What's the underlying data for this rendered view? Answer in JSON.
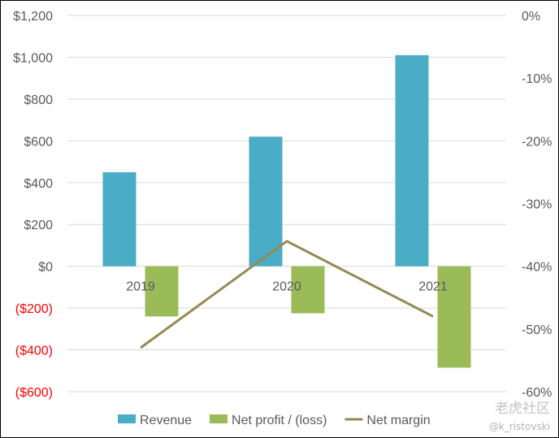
{
  "chart_data": {
    "type": "bar",
    "categories": [
      "2019",
      "2020",
      "2021"
    ],
    "series": [
      {
        "name": "Revenue",
        "kind": "bar",
        "axis": "left",
        "color": "#4bacc6",
        "values": [
          450,
          620,
          1010
        ]
      },
      {
        "name": "Net profit / (loss)",
        "kind": "bar",
        "axis": "left",
        "color": "#9bbb59",
        "values": [
          -240,
          -225,
          -485
        ]
      },
      {
        "name": "Net margin",
        "kind": "line",
        "axis": "right",
        "color": "#948a54",
        "values": [
          -53,
          -36,
          -48
        ]
      }
    ],
    "y_left": {
      "min": -600,
      "max": 1200,
      "step": 200,
      "tick_labels": [
        "($600)",
        "($400)",
        "($200)",
        "$0",
        "$200",
        "$400",
        "$600",
        "$800",
        "$1,000",
        "$1,200"
      ],
      "negative_color": "#ff0000"
    },
    "y_right": {
      "min": -60,
      "max": 0,
      "step": 10,
      "tick_labels": [
        "-60%",
        "-50%",
        "-40%",
        "-30%",
        "-20%",
        "-10%",
        "0%"
      ]
    },
    "grid": true,
    "legend": "bottom",
    "xlabel": "",
    "ylabel": "",
    "title": ""
  },
  "watermark": {
    "brand": "老虎社区",
    "handle": "@k_ristovski"
  }
}
